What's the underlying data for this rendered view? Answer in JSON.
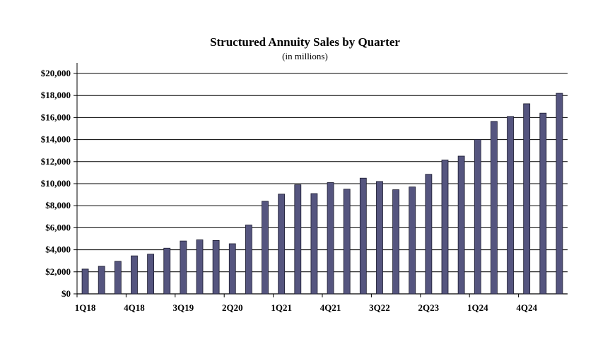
{
  "chart_data": {
    "type": "bar",
    "title": "Structured Annuity Sales by Quarter",
    "subtitle": "(in millions)",
    "ylim": [
      0,
      20000
    ],
    "ytick_values": [
      0,
      2000,
      4000,
      6000,
      8000,
      10000,
      12000,
      14000,
      16000,
      18000,
      20000
    ],
    "ytick_labels": [
      "$0",
      "$2,000",
      "$4,000",
      "$6,000",
      "$8,000",
      "$10,000",
      "$12,000",
      "$14,000",
      "$16,000",
      "$18,000",
      "$20,000"
    ],
    "xtick_labels": [
      {
        "index": 0,
        "label": "1Q18"
      },
      {
        "index": 3,
        "label": "4Q18"
      },
      {
        "index": 6,
        "label": "3Q19"
      },
      {
        "index": 9,
        "label": "2Q20"
      },
      {
        "index": 12,
        "label": "1Q21"
      },
      {
        "index": 15,
        "label": "4Q21"
      },
      {
        "index": 18,
        "label": "3Q22"
      },
      {
        "index": 21,
        "label": "2Q23"
      },
      {
        "index": 24,
        "label": "1Q24"
      },
      {
        "index": 27,
        "label": "4Q24"
      }
    ],
    "values": [
      2250,
      2500,
      2950,
      3450,
      3600,
      4150,
      4800,
      4900,
      4850,
      4550,
      6250,
      8400,
      9050,
      9900,
      9100,
      10100,
      9500,
      10500,
      10200,
      9450,
      9700,
      10850,
      12150,
      12500,
      14000,
      15650,
      16100,
      17250,
      16400,
      18200
    ],
    "grid": true,
    "bar_color": "#55557f",
    "bar_edge_color": "#1a1a2e"
  }
}
